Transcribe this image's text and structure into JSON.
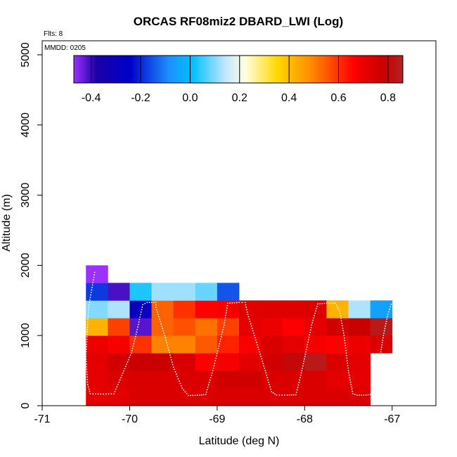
{
  "chart_data": {
    "type": "heatmap",
    "title": "ORCAS RF08miz2 DBARD_LWI (Log)",
    "xlabel": "Latitude (deg N)",
    "ylabel": "Altitude (m)",
    "notes": {
      "flights": "Flts: 8",
      "date": "MMDD: 0205"
    },
    "xlim": [
      -71,
      -66.5
    ],
    "ylim": [
      0,
      5200
    ],
    "x_ticks": [
      -71,
      -70,
      -69,
      -68,
      -67
    ],
    "y_ticks": [
      0,
      1000,
      2000,
      3000,
      4000,
      5000
    ],
    "colorbar": {
      "range": [
        -0.47,
        0.86
      ],
      "ticks": [
        -0.4,
        -0.2,
        0.0,
        0.2,
        0.4,
        0.6,
        0.8
      ],
      "tick_labels": [
        "-0.4",
        "-0.2",
        "0.0",
        "0.2",
        "0.4",
        "0.6",
        "0.8"
      ]
    },
    "grid": {
      "x_start": -70.5,
      "x_step": 0.25,
      "y_start": 0,
      "y_step": 250
    },
    "cells": [
      [
        0.72,
        0.72,
        0.74,
        0.74,
        0.74,
        0.74,
        0.74,
        0.74,
        0.74,
        0.74,
        0.74,
        0.74,
        0.74
      ],
      [
        0.72,
        0.74,
        0.74,
        0.74,
        0.74,
        0.74,
        0.76,
        0.76,
        0.74,
        0.74,
        0.74,
        0.72,
        0.72
      ],
      [
        0.72,
        0.76,
        0.78,
        0.78,
        0.74,
        0.66,
        0.68,
        0.72,
        0.76,
        0.8,
        0.84,
        0.74,
        0.72
      ],
      [
        0.7,
        0.68,
        0.6,
        0.5,
        0.5,
        0.55,
        0.62,
        0.68,
        0.74,
        0.72,
        0.68,
        0.66,
        0.7,
        0.74
      ],
      [
        0.42,
        0.58,
        -0.42,
        0.54,
        0.56,
        0.52,
        0.58,
        0.72,
        0.7,
        0.66,
        0.72,
        0.76,
        0.78,
        0.84
      ],
      [
        0.1,
        0.13,
        -0.3,
        0.54,
        0.6,
        0.66,
        0.68,
        0.73,
        0.73,
        0.73,
        0.74,
        0.42,
        0.13,
        -0.05
      ],
      [
        -0.18,
        -0.41,
        0.03,
        0.12,
        0.12,
        0.08,
        -0.15
      ],
      [
        -0.47
      ]
    ],
    "flight_track": [
      [
        -70.4,
        1900
      ],
      [
        -70.47,
        1400
      ],
      [
        -70.5,
        700
      ],
      [
        -70.48,
        300
      ],
      [
        -70.45,
        170
      ],
      [
        -70.3,
        165
      ],
      [
        -70.18,
        170
      ],
      [
        -70.1,
        400
      ],
      [
        -69.98,
        750
      ],
      [
        -69.92,
        1050
      ],
      [
        -69.85,
        1440
      ],
      [
        -69.8,
        1470
      ],
      [
        -69.7,
        1470
      ],
      [
        -69.7,
        1400
      ],
      [
        -69.6,
        1000
      ],
      [
        -69.5,
        550
      ],
      [
        -69.4,
        250
      ],
      [
        -69.33,
        145
      ],
      [
        -69.2,
        150
      ],
      [
        -69.13,
        160
      ],
      [
        -69.05,
        500
      ],
      [
        -68.98,
        850
      ],
      [
        -68.92,
        1150
      ],
      [
        -68.88,
        1460
      ],
      [
        -68.75,
        1470
      ],
      [
        -68.68,
        1470
      ],
      [
        -68.65,
        1300
      ],
      [
        -68.55,
        900
      ],
      [
        -68.45,
        500
      ],
      [
        -68.38,
        200
      ],
      [
        -68.32,
        150
      ],
      [
        -68.2,
        150
      ],
      [
        -68.1,
        155
      ],
      [
        -68.05,
        400
      ],
      [
        -67.98,
        800
      ],
      [
        -67.92,
        1150
      ],
      [
        -67.85,
        1450
      ],
      [
        -67.75,
        1460
      ],
      [
        -67.65,
        1460
      ],
      [
        -67.6,
        1350
      ],
      [
        -67.55,
        1000
      ],
      [
        -67.5,
        500
      ],
      [
        -67.45,
        170
      ],
      [
        -67.4,
        150
      ],
      [
        -67.3,
        150
      ],
      [
        -67.2,
        170
      ],
      [
        -67.15,
        600
      ],
      [
        -67.1,
        1000
      ],
      [
        -67.05,
        1300
      ],
      [
        -67.0,
        1480
      ]
    ]
  }
}
